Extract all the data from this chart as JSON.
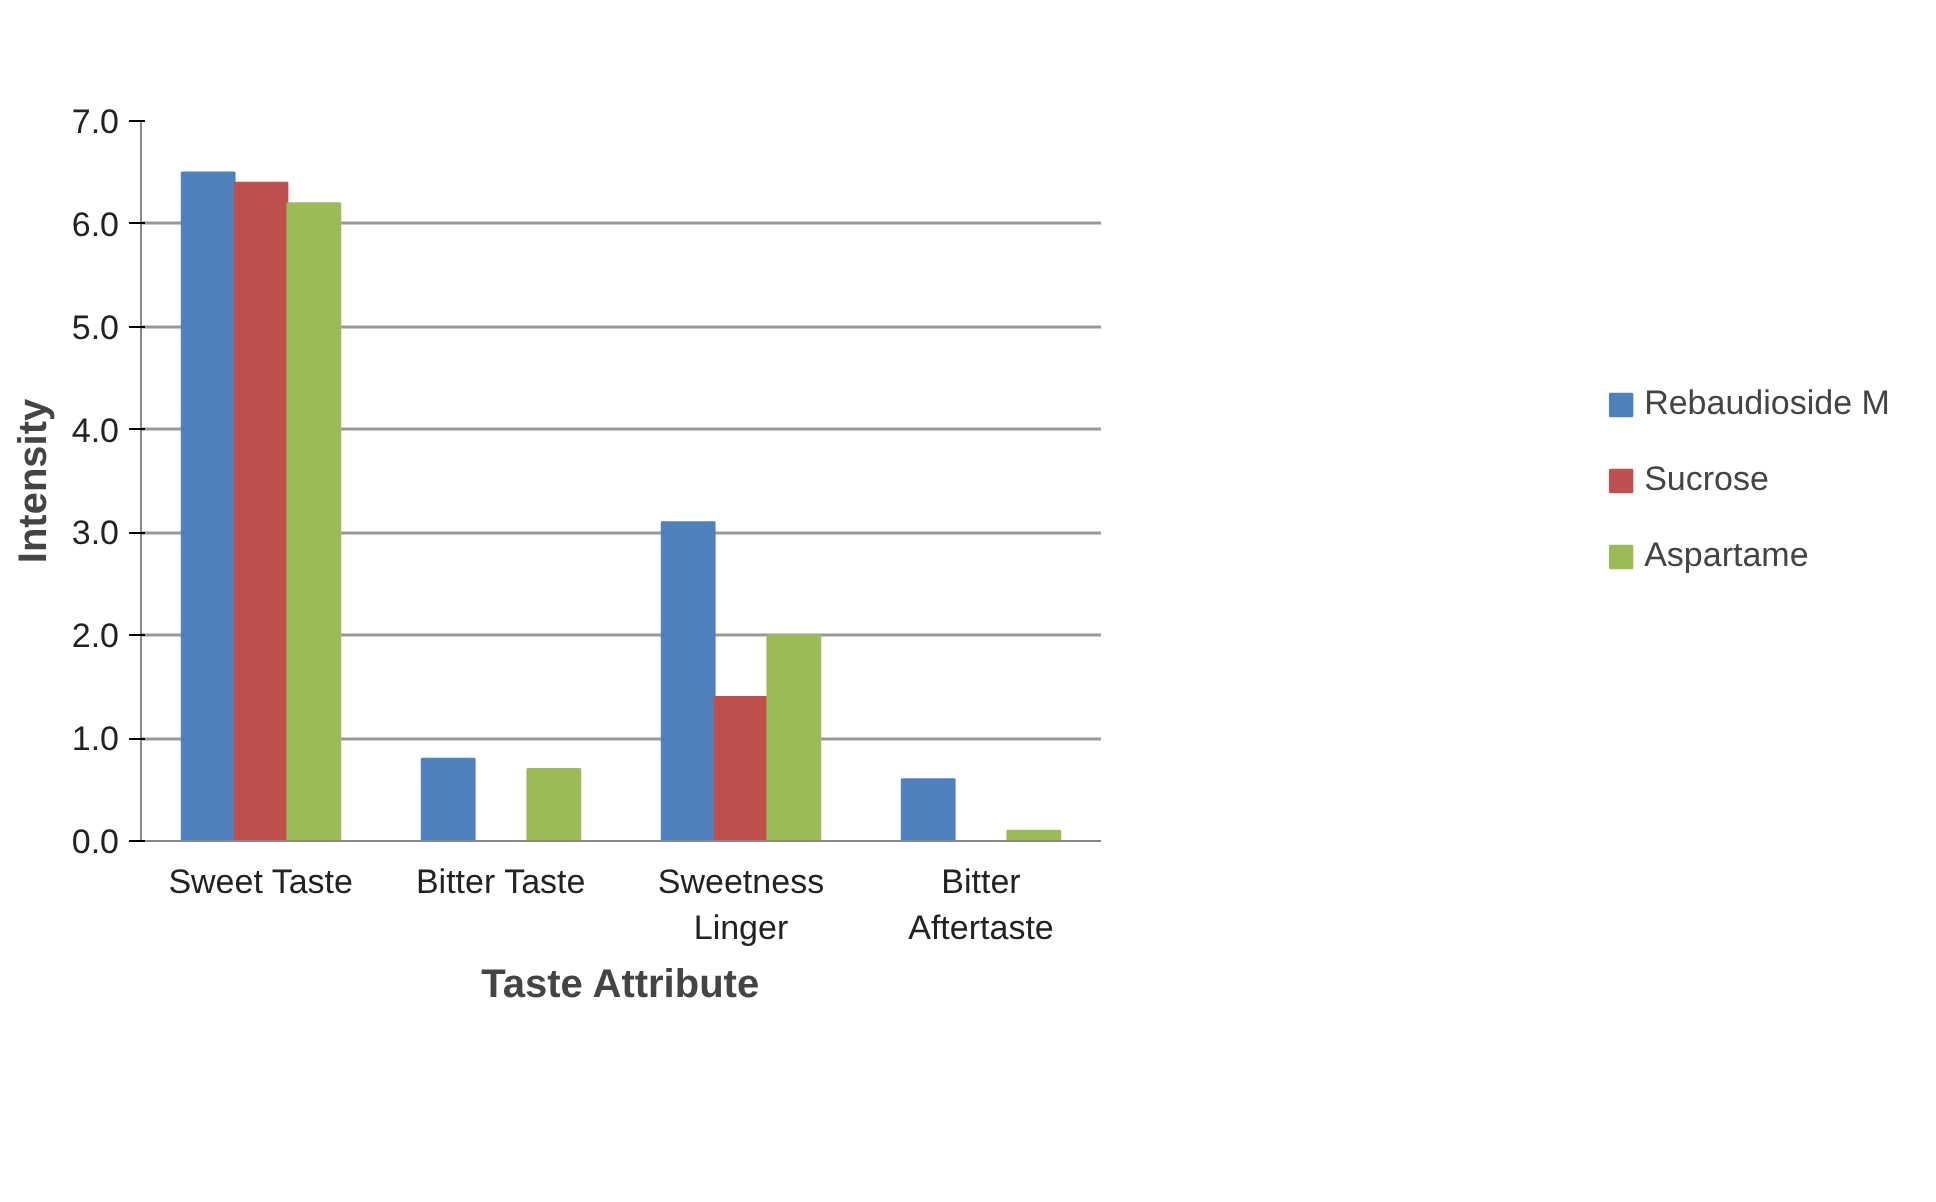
{
  "chart_data": {
    "type": "bar",
    "xlabel": "Taste Attribute",
    "ylabel": "Intensity",
    "categories": [
      "Sweet Taste",
      "Bitter Taste",
      "Sweetness\nLinger",
      "Bitter\nAftertaste"
    ],
    "series": [
      {
        "name": "Rebaudioside M",
        "color": "#4f81bd",
        "values": [
          6.5,
          0.8,
          3.1,
          0.6
        ]
      },
      {
        "name": "Sucrose",
        "color": "#c0504d",
        "values": [
          6.4,
          0,
          1.4,
          0
        ]
      },
      {
        "name": "Aspartame",
        "color": "#9bbb59",
        "values": [
          6.2,
          0.7,
          2.0,
          0.1
        ]
      }
    ],
    "ylim": [
      0,
      7
    ],
    "yticks": [
      {
        "value": 0,
        "label": "0.0"
      },
      {
        "value": 1,
        "label": "1.0"
      },
      {
        "value": 2,
        "label": "2.0"
      },
      {
        "value": 3,
        "label": "3.0"
      },
      {
        "value": 4,
        "label": "4.0"
      },
      {
        "value": 5,
        "label": "5.0"
      },
      {
        "value": 6,
        "label": "6.0"
      },
      {
        "value": 7,
        "label": "7.0"
      }
    ],
    "grid": "y",
    "legend": "right"
  }
}
